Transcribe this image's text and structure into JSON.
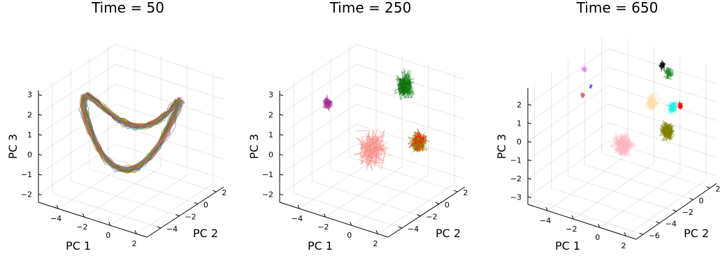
{
  "chart_data": [
    {
      "type": "scatter",
      "subtype": "3d-trajectories",
      "title": "Time = 50",
      "xlabel": "PC 1",
      "ylabel": "PC 2",
      "zlabel": "PC 3",
      "xticks": [
        -4,
        -2,
        0,
        2
      ],
      "yticks": [
        -4,
        -2,
        0,
        2
      ],
      "zticks": [
        -2,
        -1,
        0,
        1,
        2,
        3
      ],
      "xlim": [
        -5.5,
        2.8
      ],
      "ylim": [
        -5.5,
        2.8
      ],
      "zlim": [
        -2.4,
        3.2
      ],
      "grid": true,
      "legend": "none",
      "clusters": [
        {
          "kind": "ring",
          "colors": [
            "#3c9b3c",
            "#d62728",
            "#b8860b",
            "#808000",
            "#e377c2",
            "#1f77b4"
          ],
          "x": -1.2,
          "y": -1.5,
          "z": 1.2,
          "radius": 3.0,
          "spread": 1.2,
          "traces": 60
        }
      ]
    },
    {
      "type": "scatter",
      "subtype": "3d-trajectories",
      "title": "Time = 250",
      "xlabel": "PC 1",
      "ylabel": "PC 2",
      "zlabel": "PC 3",
      "xticks": [
        -4,
        -2,
        0,
        2
      ],
      "yticks": [
        -4,
        -2,
        0,
        2
      ],
      "zticks": [
        -2,
        -1,
        0,
        1,
        2,
        3
      ],
      "xlim": [
        -5.5,
        2.8
      ],
      "ylim": [
        -5.5,
        2.8
      ],
      "zlim": [
        -2.4,
        3.2
      ],
      "grid": true,
      "legend": "none",
      "clusters": [
        {
          "kind": "blob",
          "colors": [
            "#d62728",
            "#4c4cff",
            "#c71585"
          ],
          "x": -5.0,
          "y": -1.0,
          "z": 1.3,
          "radius": 0.4,
          "traces": 12
        },
        {
          "kind": "blob",
          "colors": [
            "#006400",
            "#228b22"
          ],
          "x": -0.4,
          "y": 0.8,
          "z": 2.6,
          "radius": 0.8,
          "traces": 25
        },
        {
          "kind": "blob",
          "colors": [
            "#ffb6c1",
            "#ff8c8c",
            "#e9967a"
          ],
          "x": -0.5,
          "y": -2.5,
          "z": 0.4,
          "radius": 1.3,
          "traces": 30
        },
        {
          "kind": "blob",
          "colors": [
            "#808000",
            "#9b9b1a",
            "#ff0000"
          ],
          "x": 2.3,
          "y": -1.5,
          "z": 1.0,
          "radius": 0.7,
          "traces": 30
        }
      ]
    },
    {
      "type": "scatter",
      "subtype": "3d-trajectories",
      "title": "Time = 650",
      "xlabel": "PC 1",
      "ylabel": "PC 2",
      "zlabel": "PC 3",
      "xticks": [
        -4,
        -2,
        0,
        2
      ],
      "yticks": [
        -6,
        -4,
        -2,
        0,
        2
      ],
      "zticks": [
        -3,
        -2,
        -1,
        0,
        1,
        2
      ],
      "xlim": [
        -5.5,
        2.8
      ],
      "ylim": [
        -6.8,
        2.8
      ],
      "zlim": [
        -3.4,
        2.9
      ],
      "grid": true,
      "legend": "none",
      "clusters": [
        {
          "kind": "blob",
          "colors": [
            "#ee82ee"
          ],
          "x": -4.9,
          "y": -1.0,
          "z": 2.2,
          "radius": 0.25,
          "traces": 6
        },
        {
          "kind": "blob",
          "colors": [
            "#4c4cff"
          ],
          "x": -4.4,
          "y": -1.0,
          "z": 1.4,
          "radius": 0.15,
          "traces": 5
        },
        {
          "kind": "blob",
          "colors": [
            "#cd5c5c"
          ],
          "x": -5.0,
          "y": -1.0,
          "z": 0.8,
          "radius": 0.2,
          "traces": 5
        },
        {
          "kind": "blob",
          "colors": [
            "#111111"
          ],
          "x": -0.6,
          "y": 1.6,
          "z": 2.6,
          "radius": 0.3,
          "traces": 10
        },
        {
          "kind": "blob",
          "colors": [
            "#228b22"
          ],
          "x": -0.2,
          "y": 1.8,
          "z": 2.2,
          "radius": 0.45,
          "traces": 10
        },
        {
          "kind": "blob",
          "colors": [
            "#ffdead"
          ],
          "x": 0.0,
          "y": -0.6,
          "z": 1.4,
          "radius": 0.55,
          "traces": 15
        },
        {
          "kind": "blob",
          "colors": [
            "#ffb6c1"
          ],
          "x": -0.5,
          "y": -3.2,
          "z": -0.2,
          "radius": 0.8,
          "traces": 30
        },
        {
          "kind": "blob",
          "colors": [
            "#40e0d0",
            "#00ffff"
          ],
          "x": 1.6,
          "y": -0.6,
          "z": 1.5,
          "radius": 0.4,
          "traces": 15
        },
        {
          "kind": "blob",
          "colors": [
            "#ff0000"
          ],
          "x": 2.0,
          "y": -0.3,
          "z": 1.6,
          "radius": 0.25,
          "traces": 10
        },
        {
          "kind": "blob",
          "colors": [
            "#808000"
          ],
          "x": 2.1,
          "y": -2.0,
          "z": 0.8,
          "radius": 0.55,
          "traces": 40
        }
      ]
    }
  ]
}
